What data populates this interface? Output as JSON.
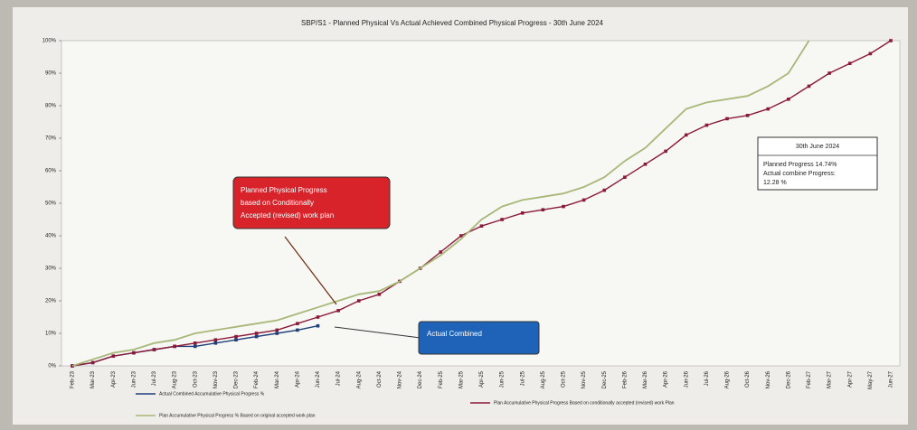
{
  "chart_data": {
    "type": "line",
    "title": "SBP/S1 - Planned Physical Vs Actual Achieved Combined Physical Progress - 30th June 2024",
    "categories": [
      "Feb-23",
      "Mar-23",
      "Apr-23",
      "Jun-23",
      "Jul-23",
      "Aug-23",
      "Oct-23",
      "Nov-23",
      "Dec-23",
      "Feb-24",
      "Mar-24",
      "Apr-24",
      "Jun-24",
      "Jul-24",
      "Aug-24",
      "Oct-24",
      "Nov-24",
      "Dec-24",
      "Feb-25",
      "Mar-25",
      "Apr-25",
      "Jun-25",
      "Jul-25",
      "Aug-25",
      "Oct-25",
      "Nov-25",
      "Dec-25",
      "Feb-26",
      "Mar-26",
      "Apr-26",
      "Jun-26",
      "Jul-26",
      "Aug-26",
      "Oct-26",
      "Nov-26",
      "Dec-26",
      "Feb-27",
      "Mar-27",
      "Apr-27",
      "May-27",
      "Jun-27"
    ],
    "series": [
      {
        "name": "Actual Combined Accumulative Physical Progress %",
        "color": "#1f3f7a",
        "values": [
          0,
          1,
          3,
          4,
          5,
          6,
          6,
          7,
          8,
          9,
          10,
          11,
          12.3,
          null,
          null,
          null,
          null,
          null,
          null,
          null,
          null,
          null,
          null,
          null,
          null,
          null,
          null,
          null,
          null,
          null,
          null,
          null,
          null,
          null,
          null,
          null,
          null,
          null,
          null,
          null,
          null
        ]
      },
      {
        "name": "Plan Accumulative Physical Progress Based on conditionally accepted (revised) work Plan",
        "color": "#8b1a3a",
        "values": [
          0,
          1,
          3,
          4,
          5,
          6,
          7,
          8,
          9,
          10,
          11,
          13,
          15,
          17,
          20,
          22,
          26,
          30,
          35,
          40,
          43,
          45,
          47,
          48,
          49,
          51,
          54,
          58,
          62,
          66,
          71,
          74,
          76,
          77,
          79,
          82,
          86,
          90,
          93,
          96,
          100
        ]
      },
      {
        "name": "Plan Accumulative Physical Progress % Based on original accepted work plan",
        "color": "#a8b878",
        "values": [
          0,
          2,
          4,
          5,
          7,
          8,
          10,
          11,
          12,
          13,
          14,
          16,
          18,
          20,
          22,
          23,
          26,
          30,
          34,
          39,
          45,
          49,
          51,
          52,
          53,
          55,
          58,
          63,
          67,
          73,
          79,
          81,
          82,
          83,
          86,
          90,
          100,
          null,
          null,
          null,
          null
        ]
      }
    ],
    "ylim": [
      0,
      100
    ],
    "yticks": [
      {
        "value": 0,
        "label": "0%"
      },
      {
        "value": 10,
        "label": "10%"
      },
      {
        "value": 20,
        "label": "20%"
      },
      {
        "value": 30,
        "label": "30%"
      },
      {
        "value": 40,
        "label": "40%"
      },
      {
        "value": 50,
        "label": "50%"
      },
      {
        "value": 60,
        "label": "60%"
      },
      {
        "value": 70,
        "label": "70%"
      },
      {
        "value": 80,
        "label": "80%"
      },
      {
        "value": 90,
        "label": "90%"
      },
      {
        "value": 100,
        "label": "100%"
      }
    ],
    "annotations": {
      "planned_box": [
        "Planned Physical Progress",
        "based on Conditionally",
        "Accepted (revised) work plan"
      ],
      "actual_box": "Actual Combined",
      "info_box": [
        "30th June 2024",
        "Planned Progress 14.74%",
        "Actual combine Progress:",
        "12.28 %"
      ]
    }
  }
}
